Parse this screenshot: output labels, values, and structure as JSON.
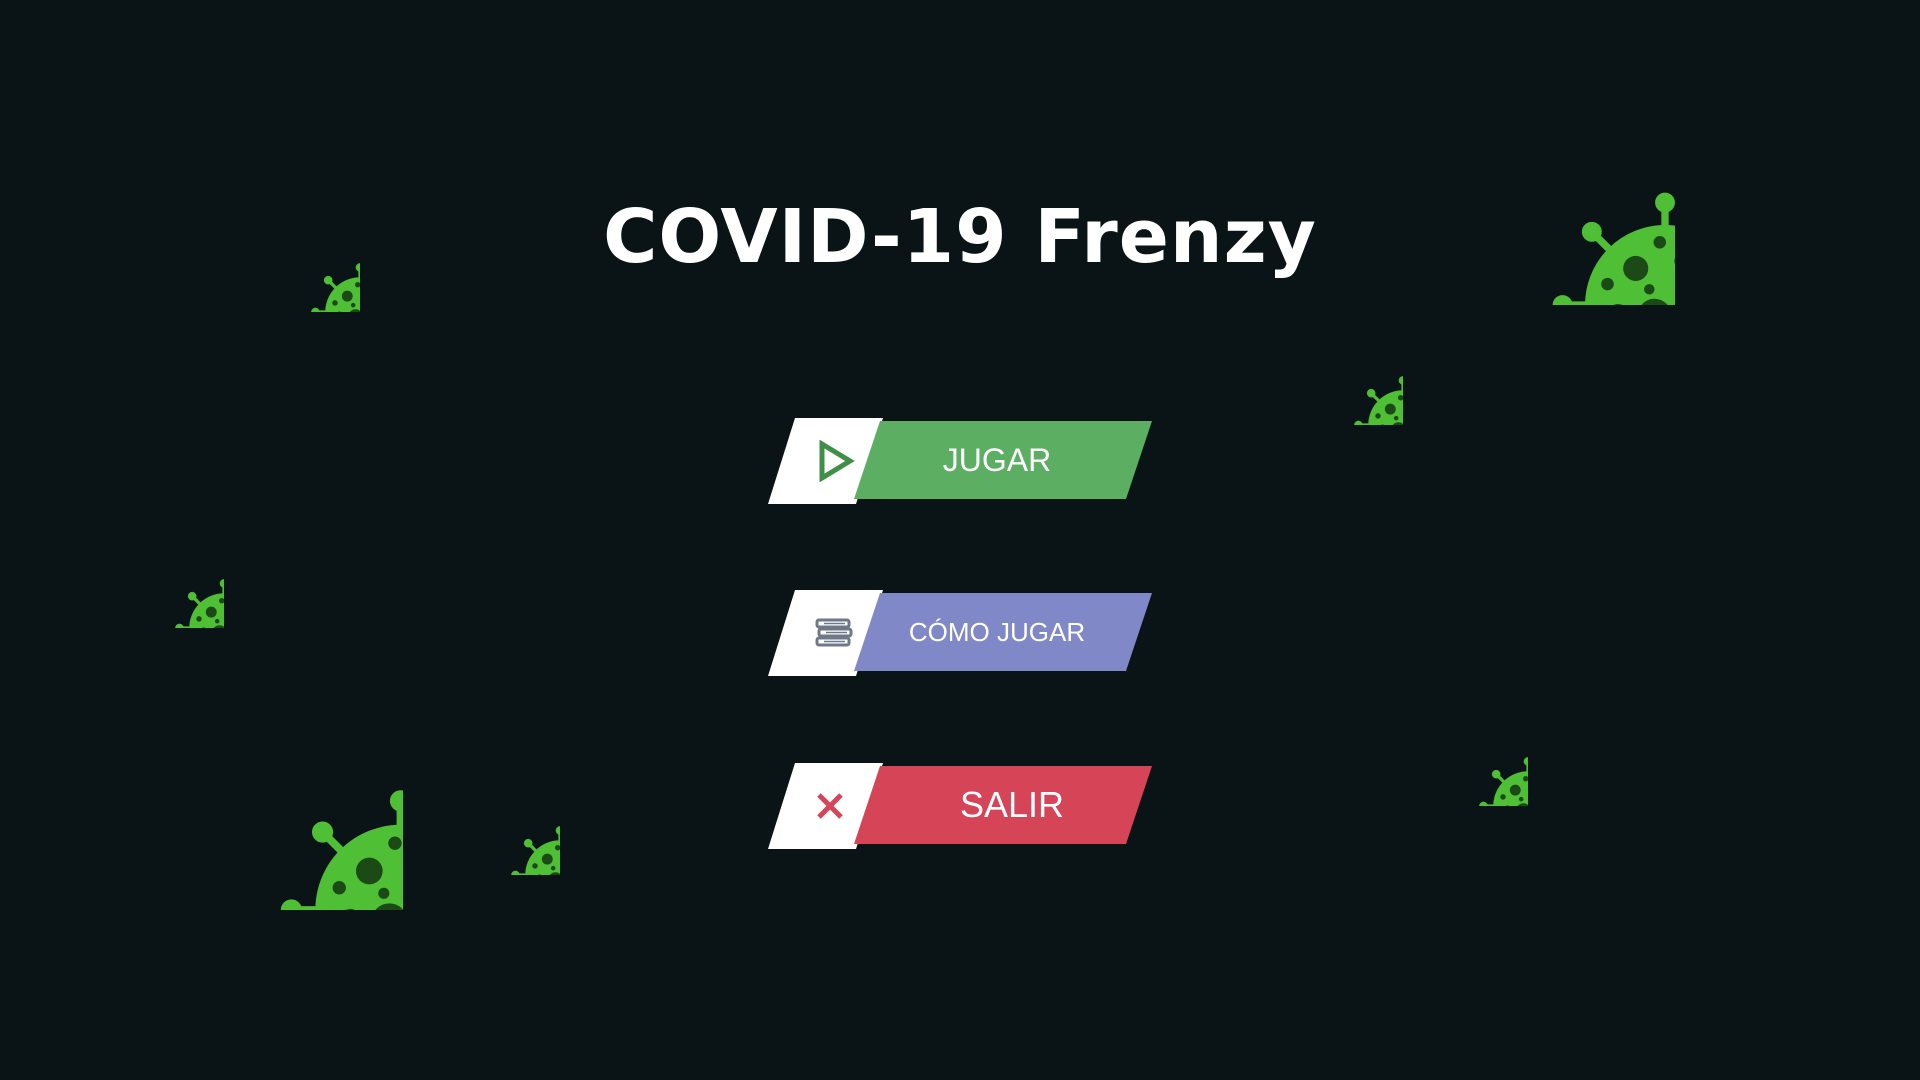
{
  "game": {
    "title": "COVID-19 Frenzy"
  },
  "menu": {
    "play": {
      "label": "JUGAR",
      "icon": "play-triangle-icon",
      "color": "#5caf62",
      "icon_color": "#3f8f48"
    },
    "how_to_play": {
      "label": "CÓMO JUGAR",
      "icon": "book-stack-icon",
      "color": "#8088c8",
      "icon_color": "#6f7889"
    },
    "exit": {
      "label": "SALIR",
      "icon": "close-x-icon",
      "color": "#d54457",
      "icon_color": "#d54457"
    }
  },
  "colors": {
    "background": "#0a1416",
    "virus_body": "#4fbf35",
    "virus_spot": "#1c4a17",
    "title_text": "#ffffff"
  }
}
